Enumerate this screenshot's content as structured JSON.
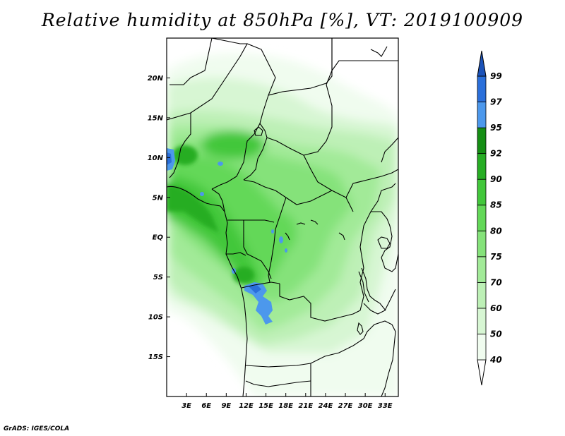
{
  "title": "Relative humidity at 850hPa [%], VT: 2019100909",
  "credit": "GrADS: IGES/COLA",
  "map": {
    "lon_range": [
      0,
      35
    ],
    "lat_range": [
      -20,
      25
    ],
    "lat_ticks": [
      {
        "label": "20N",
        "lat": 20
      },
      {
        "label": "15N",
        "lat": 15
      },
      {
        "label": "10N",
        "lat": 10
      },
      {
        "label": "5N",
        "lat": 5
      },
      {
        "label": "EQ",
        "lat": 0
      },
      {
        "label": "5S",
        "lat": -5
      },
      {
        "label": "10S",
        "lat": -10
      },
      {
        "label": "15S",
        "lat": -15
      }
    ],
    "lon_ticks": [
      {
        "label": "3E",
        "lon": 3
      },
      {
        "label": "6E",
        "lon": 6
      },
      {
        "label": "9E",
        "lon": 9
      },
      {
        "label": "12E",
        "lon": 12
      },
      {
        "label": "15E",
        "lon": 15
      },
      {
        "label": "18E",
        "lon": 18
      },
      {
        "label": "21E",
        "lon": 21
      },
      {
        "label": "24E",
        "lon": 24
      },
      {
        "label": "27E",
        "lon": 27
      },
      {
        "label": "30E",
        "lon": 30
      },
      {
        "label": "33E",
        "lon": 33
      }
    ]
  },
  "colorbar": {
    "levels": [
      "99",
      "97",
      "95",
      "92",
      "90",
      "85",
      "80",
      "75",
      "70",
      "60",
      "50",
      "40"
    ],
    "bins": [
      {
        "range": "40-50",
        "color": "#f0fcef"
      },
      {
        "range": "50-60",
        "color": "#d7f6d3"
      },
      {
        "range": "60-70",
        "color": "#bdf0b6"
      },
      {
        "range": "70-75",
        "color": "#a2ea98"
      },
      {
        "range": "75-80",
        "color": "#85e27a"
      },
      {
        "range": "80-85",
        "color": "#63d858"
      },
      {
        "range": "85-90",
        "color": "#42c73b"
      },
      {
        "range": "90-92",
        "color": "#27ad24"
      },
      {
        "range": "92-95",
        "color": "#158e14"
      },
      {
        "range": "95-97",
        "color": "#4c98ec"
      },
      {
        "range": "97-99",
        "color": "#2a6fda"
      },
      {
        "range": ">99",
        "color": "#1b52b8"
      }
    ],
    "below_color": "#ffffff"
  }
}
